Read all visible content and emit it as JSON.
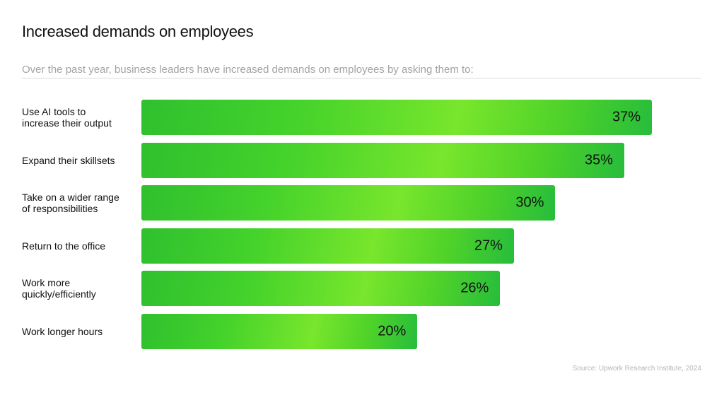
{
  "chart_data": {
    "type": "bar",
    "orientation": "horizontal",
    "title": "Increased demands on employees",
    "subtitle": "Over the past year, business leaders have increased demands on employees by asking them to:",
    "categories": [
      [
        "Use AI tools to",
        "increase their output"
      ],
      [
        "Expand their skillsets"
      ],
      [
        "Take on a wider range",
        "of responsibilities"
      ],
      [
        "Return to the office"
      ],
      [
        "Work more",
        "quickly/efficiently"
      ],
      [
        "Work longer hours"
      ]
    ],
    "values": [
      37,
      35,
      30,
      27,
      26,
      20
    ],
    "value_labels": [
      "37%",
      "35%",
      "30%",
      "27%",
      "26%",
      "20%"
    ],
    "unit": "%",
    "bar_color": "#4fd22a",
    "source": "Source: Upwork Research Institute, 2024"
  }
}
